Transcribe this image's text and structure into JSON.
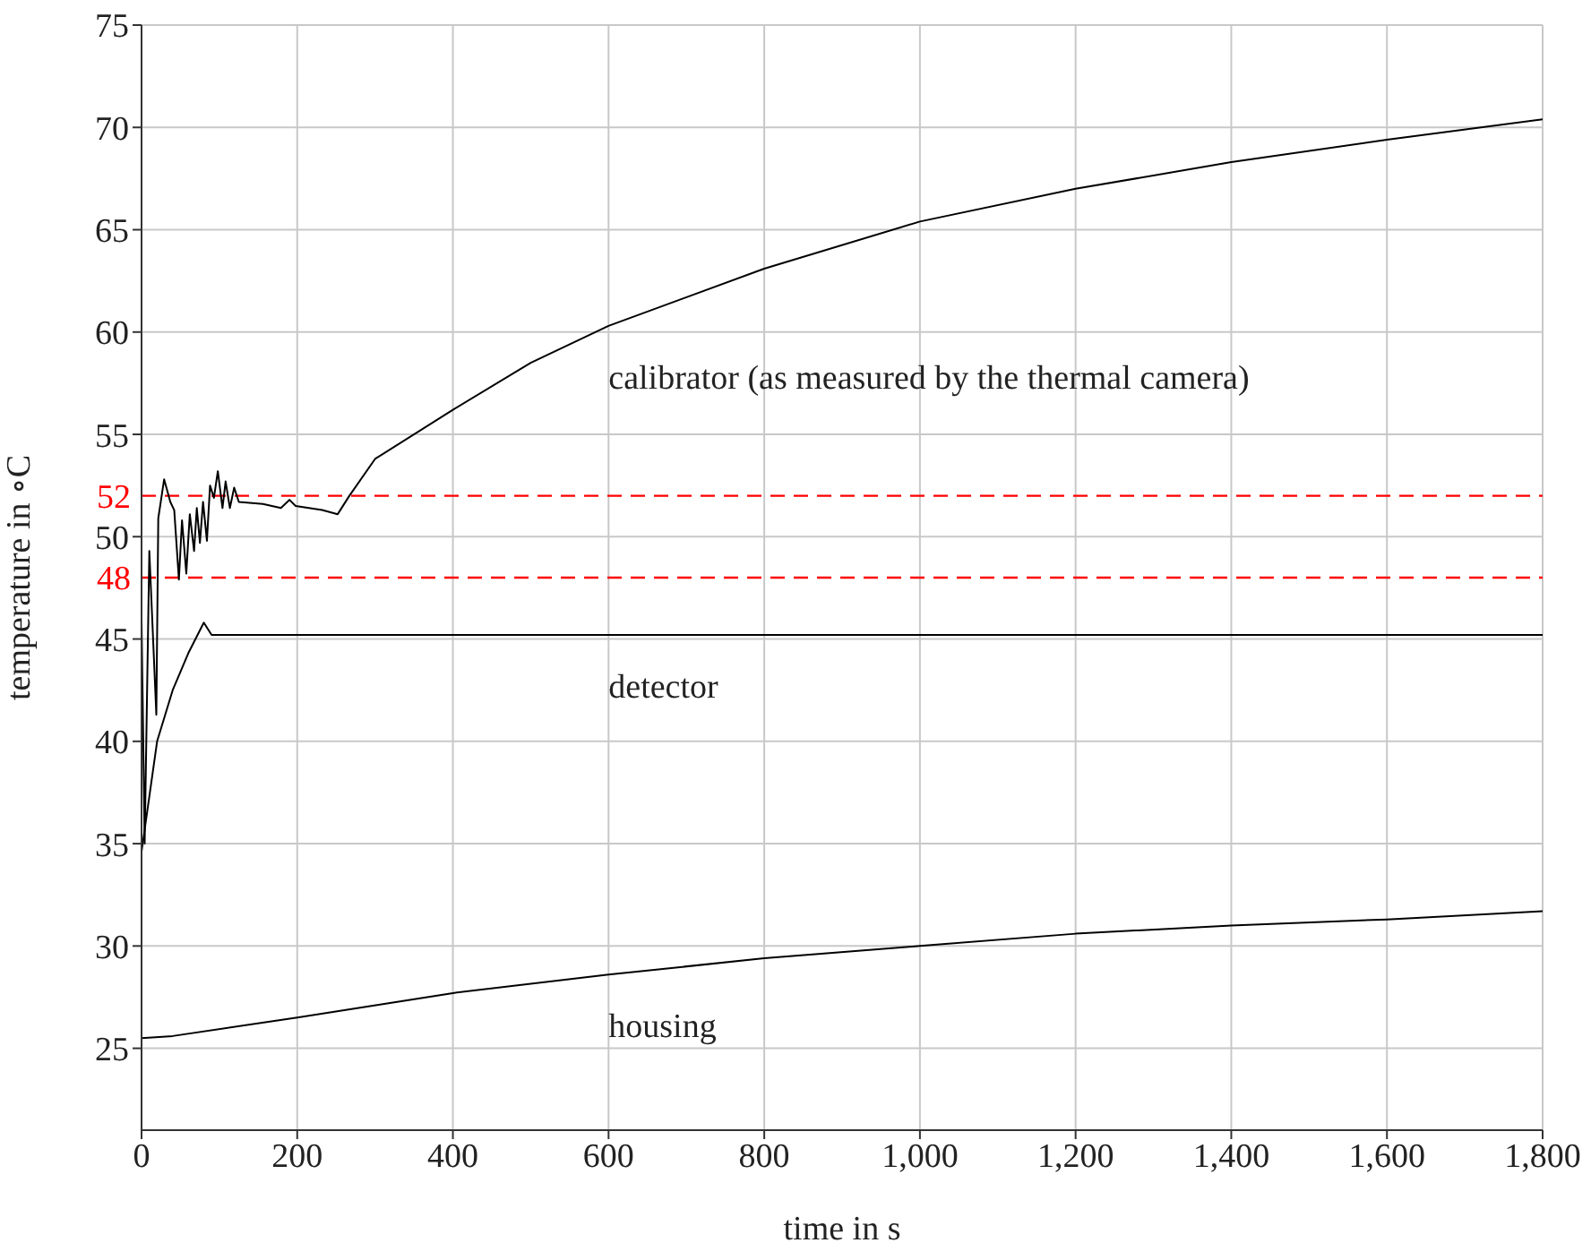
{
  "chart_data": {
    "type": "line",
    "xlabel": "time in s",
    "ylabel": "temperature in ∘C",
    "xlim": [
      0,
      1800
    ],
    "ylim": [
      21,
      75
    ],
    "xticks": [
      0,
      200,
      400,
      600,
      800,
      {
        "value": 1000,
        "label": "1,000"
      },
      {
        "value": 1200,
        "label": "1,200"
      },
      {
        "value": 1400,
        "label": "1,400"
      },
      {
        "value": 1600,
        "label": "1,600"
      },
      {
        "value": 1800,
        "label": "1,800"
      }
    ],
    "yticks": [
      25,
      30,
      35,
      40,
      45,
      50,
      55,
      60,
      65,
      70,
      75
    ],
    "grid": true,
    "legend": false,
    "marker": "none",
    "line_style": "solid",
    "series": [
      {
        "name": "calibrator (as measured by the thermal camera)",
        "color": "#000000",
        "x": [
          0,
          4,
          10,
          19,
          21.5,
          29,
          37,
          42,
          48,
          52,
          57.5,
          62,
          67.5,
          71,
          75,
          79,
          84,
          88,
          93,
          98,
          104,
          108,
          113.5,
          119,
          125,
          156,
          179,
          190,
          198,
          232,
          252,
          267,
          300,
          400,
          500,
          600,
          800,
          1000,
          1200,
          1400,
          1600,
          1800
        ],
        "values": [
          46,
          35,
          49.3,
          41.3,
          50.9,
          52.8,
          51.7,
          51.3,
          47.9,
          50.8,
          48.2,
          51.1,
          49.3,
          51.4,
          49.7,
          51.7,
          49.8,
          52.5,
          51.9,
          53.2,
          51.4,
          52.7,
          51.4,
          52.4,
          51.7,
          51.6,
          51.4,
          51.8,
          51.5,
          51.3,
          51.1,
          52,
          53.8,
          56.2,
          58.5,
          60.3,
          63.1,
          65.4,
          67,
          68.3,
          69.4,
          70.4
        ]
      },
      {
        "name": "detector",
        "color": "#000000",
        "x": [
          0,
          20,
          40,
          60,
          80,
          90,
          200,
          600,
          1000,
          1400,
          1800
        ],
        "values": [
          34.6,
          40,
          42.5,
          44.3,
          45.8,
          45.2,
          45.2,
          45.2,
          45.2,
          45.2,
          45.2
        ]
      },
      {
        "name": "housing",
        "color": "#000000",
        "x": [
          0,
          40,
          200,
          400,
          600,
          800,
          1000,
          1200,
          1400,
          1600,
          1800
        ],
        "values": [
          25.5,
          25.6,
          26.5,
          27.7,
          28.6,
          29.4,
          30,
          30.6,
          31,
          31.3,
          31.7
        ]
      }
    ],
    "ref_lines": [
      {
        "axis": "y",
        "value": 52,
        "label": "52",
        "color": "#ff0000",
        "line_style": "dashed"
      },
      {
        "axis": "y",
        "value": 48,
        "label": "48",
        "color": "#ff0000",
        "line_style": "dashed"
      }
    ]
  }
}
